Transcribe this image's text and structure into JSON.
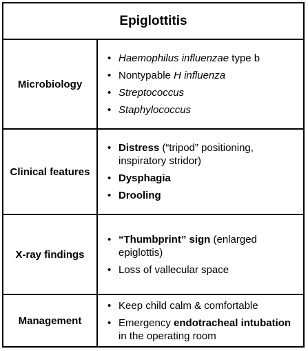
{
  "title": "Epiglottitis",
  "rows": [
    {
      "label": "Microbiology",
      "items": [
        [
          {
            "t": "Haemophilus influenzae",
            "s": "i"
          },
          {
            "t": " type b",
            "s": "n"
          }
        ],
        [
          {
            "t": "Nontypable ",
            "s": "n"
          },
          {
            "t": "H influenza",
            "s": "i"
          }
        ],
        [
          {
            "t": "Streptococcus",
            "s": "i"
          }
        ],
        [
          {
            "t": "Staphylococcus",
            "s": "i"
          }
        ]
      ]
    },
    {
      "label": "Clinical features",
      "items": [
        [
          {
            "t": "Distress",
            "s": "b"
          },
          {
            "t": " (“tripod” positioning, inspiratory stridor)",
            "s": "n"
          }
        ],
        [
          {
            "t": "Dysphagia",
            "s": "b"
          }
        ],
        [
          {
            "t": "Drooling",
            "s": "b"
          }
        ]
      ]
    },
    {
      "label": "X-ray findings",
      "items": [
        [
          {
            "t": "“Thumbprint” sign",
            "s": "b"
          },
          {
            "t": " (enlarged epiglottis)",
            "s": "n"
          }
        ],
        [
          {
            "t": "Loss of vallecular space",
            "s": "n"
          }
        ]
      ]
    },
    {
      "label": "Management",
      "items": [
        [
          {
            "t": "Keep child calm & comfortable",
            "s": "n"
          }
        ],
        [
          {
            "t": "Emergency ",
            "s": "n"
          },
          {
            "t": "endotracheal intubation",
            "s": "b"
          },
          {
            "t": " in the operating room",
            "s": "n"
          }
        ]
      ]
    }
  ]
}
